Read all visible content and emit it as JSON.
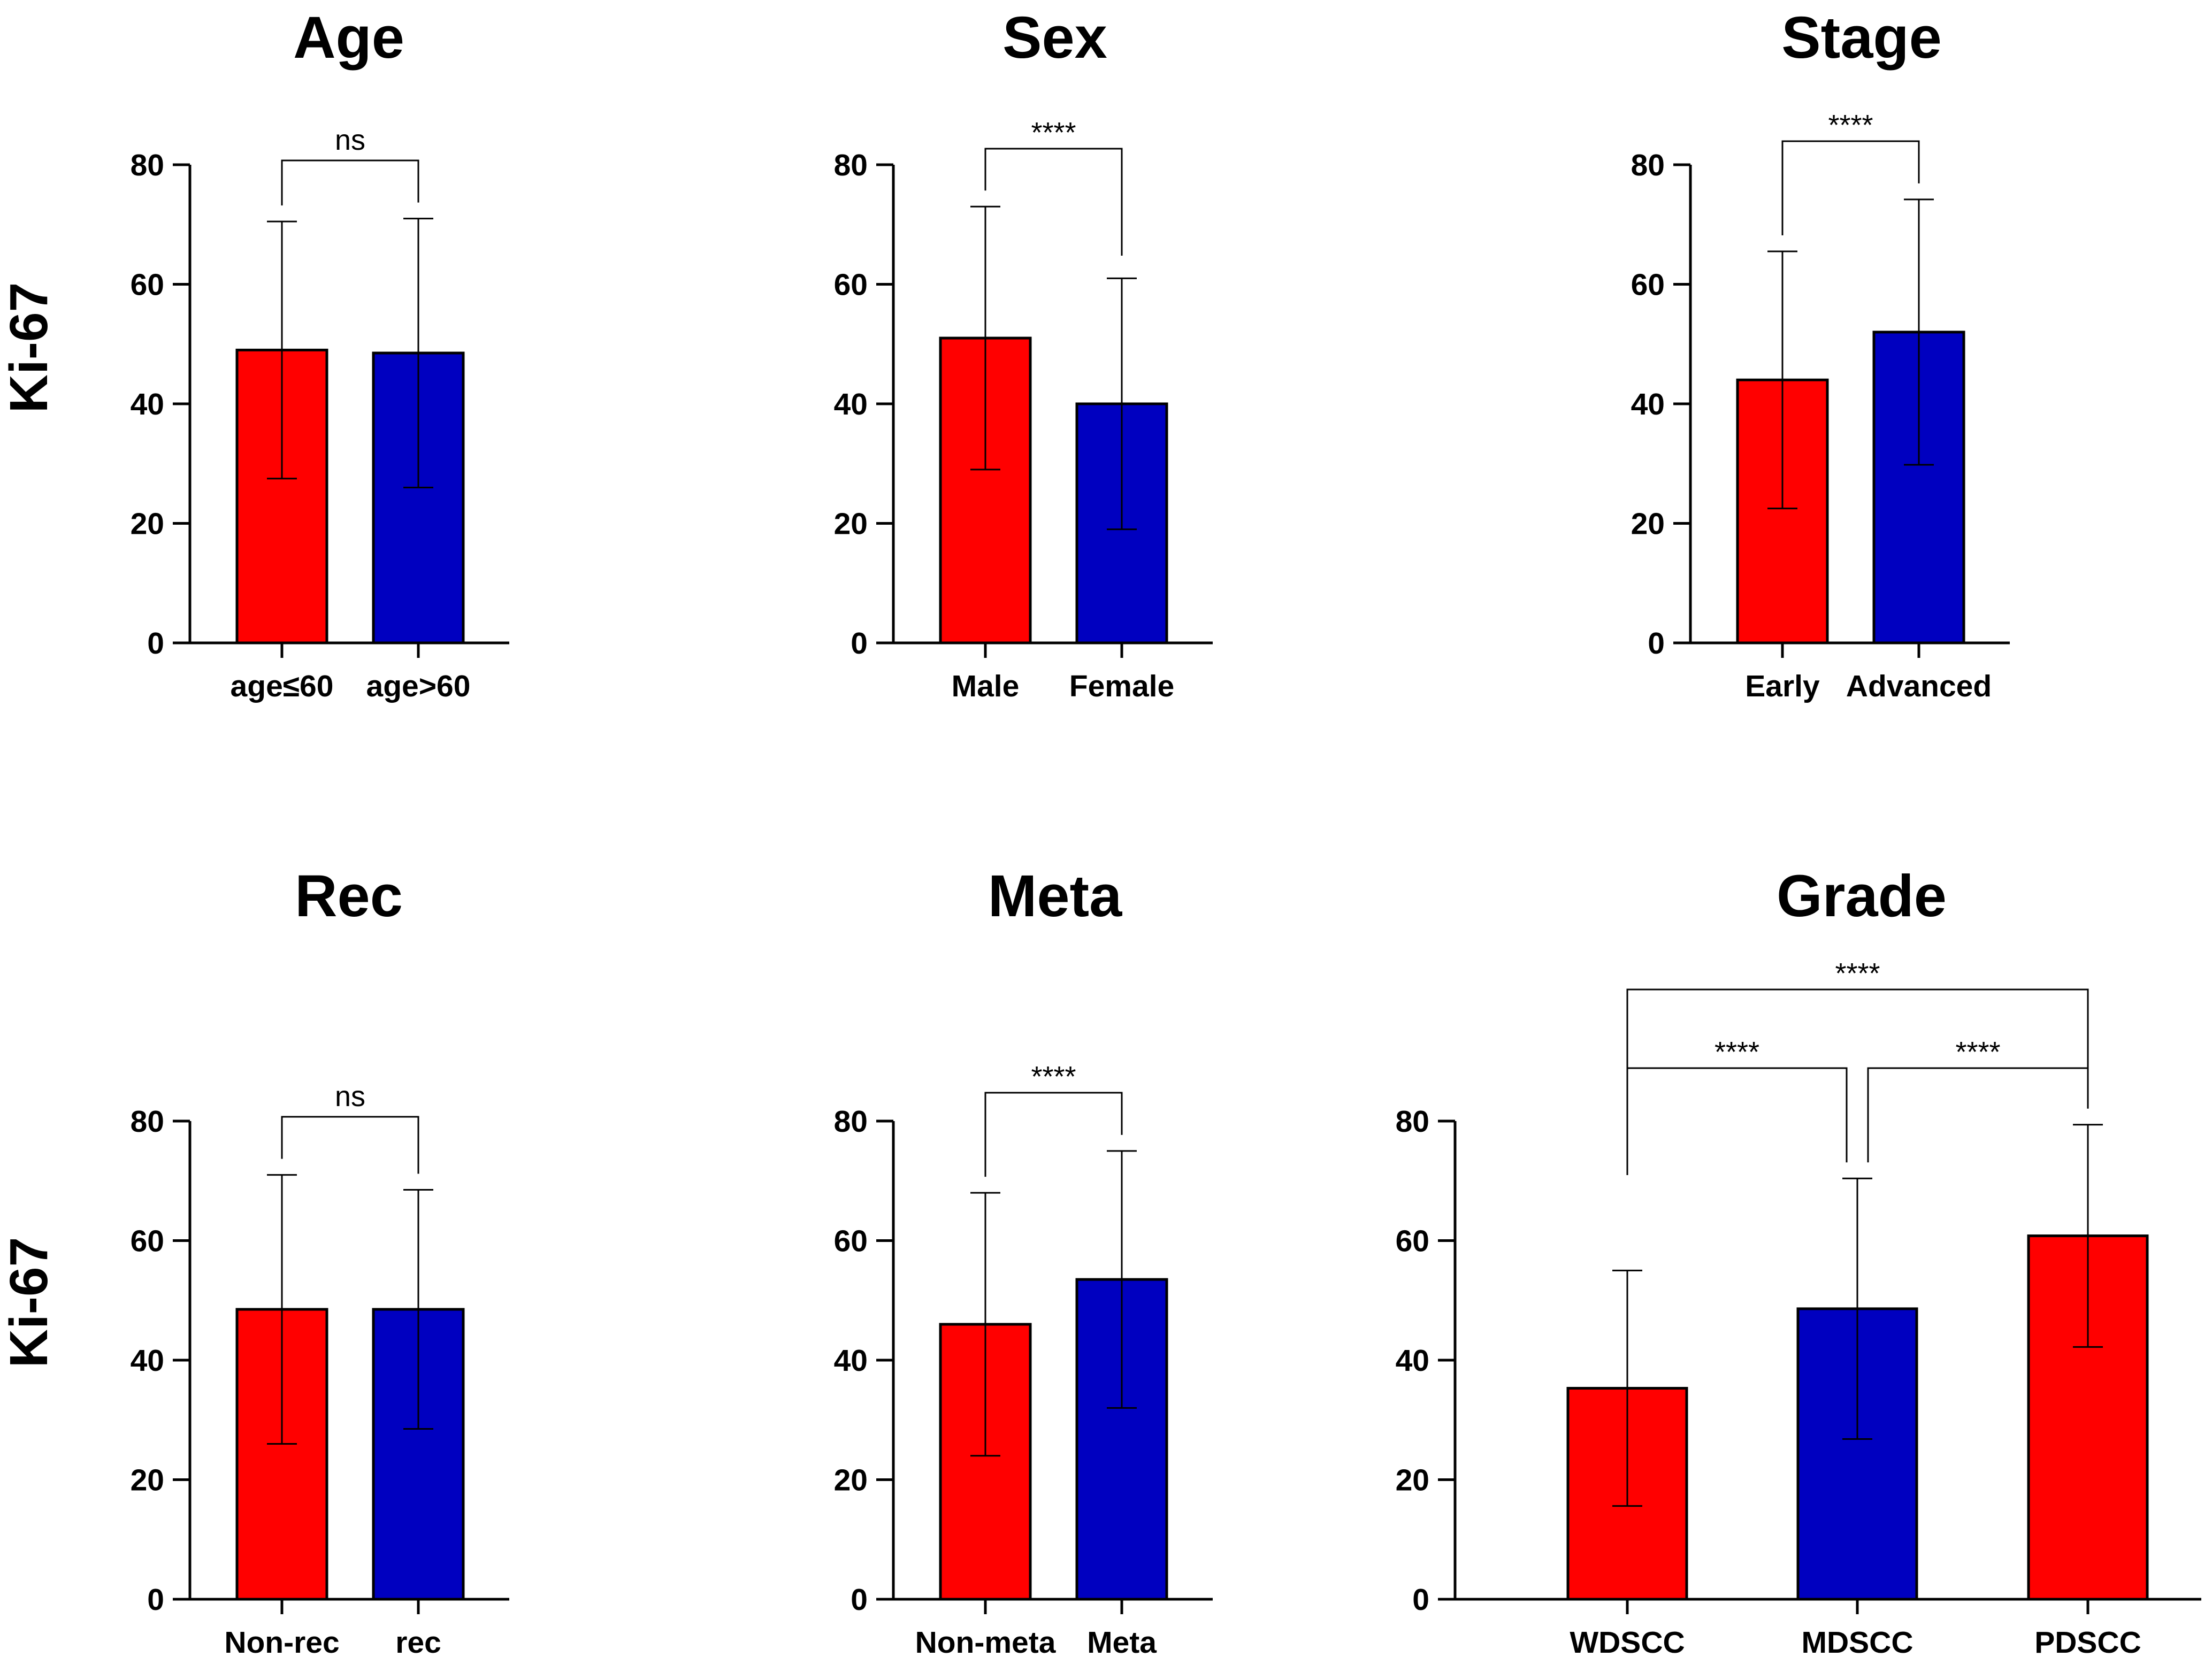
{
  "colors": {
    "group_a": "#ff0000",
    "group_b": "#0000c0"
  },
  "ylabel": "Ki-67",
  "chart_data": [
    {
      "type": "bar",
      "title": "Age",
      "ylabel": "Ki-67",
      "ylim": [
        0,
        80
      ],
      "yticks": [
        "0",
        "20",
        "40",
        "60",
        "80"
      ],
      "categories": [
        "age≤60",
        "age>60"
      ],
      "values": [
        49,
        48.5
      ],
      "errors": [
        21.5,
        22.5
      ],
      "bar_colors": [
        "#ff0000",
        "#0000c0"
      ],
      "comparisons": [
        {
          "from": 0,
          "to": 1,
          "label": "ns"
        }
      ]
    },
    {
      "type": "bar",
      "title": "Sex",
      "ylabel": "",
      "ylim": [
        0,
        80
      ],
      "yticks": [
        "0",
        "20",
        "40",
        "60",
        "80"
      ],
      "categories": [
        "Male",
        "Female"
      ],
      "values": [
        51,
        40
      ],
      "errors": [
        22,
        21
      ],
      "bar_colors": [
        "#ff0000",
        "#0000c0"
      ],
      "comparisons": [
        {
          "from": 0,
          "to": 1,
          "label": "****"
        }
      ]
    },
    {
      "type": "bar",
      "title": "Stage",
      "ylabel": "",
      "ylim": [
        0,
        80
      ],
      "yticks": [
        "0",
        "20",
        "40",
        "60",
        "80"
      ],
      "categories": [
        "Early",
        "Advanced"
      ],
      "values": [
        44,
        52
      ],
      "errors": [
        21.5,
        22.2
      ],
      "bar_colors": [
        "#ff0000",
        "#0000c0"
      ],
      "comparisons": [
        {
          "from": 0,
          "to": 1,
          "label": "****"
        }
      ]
    },
    {
      "type": "bar",
      "title": "Rec",
      "ylabel": "Ki-67",
      "ylim": [
        0,
        80
      ],
      "yticks": [
        "0",
        "20",
        "40",
        "60",
        "80"
      ],
      "categories": [
        "Non-rec",
        "rec"
      ],
      "values": [
        48.5,
        48.5
      ],
      "errors": [
        22.5,
        20
      ],
      "bar_colors": [
        "#ff0000",
        "#0000c0"
      ],
      "comparisons": [
        {
          "from": 0,
          "to": 1,
          "label": "ns"
        }
      ]
    },
    {
      "type": "bar",
      "title": "Meta",
      "ylabel": "",
      "ylim": [
        0,
        80
      ],
      "yticks": [
        "0",
        "20",
        "40",
        "60",
        "80"
      ],
      "categories": [
        "Non-meta",
        "Meta"
      ],
      "values": [
        46,
        53.5
      ],
      "errors": [
        22,
        21.5
      ],
      "bar_colors": [
        "#ff0000",
        "#0000c0"
      ],
      "comparisons": [
        {
          "from": 0,
          "to": 1,
          "label": "****"
        }
      ]
    },
    {
      "type": "bar",
      "title": "Grade",
      "ylabel": "",
      "ylim": [
        0,
        80
      ],
      "yticks": [
        "0",
        "20",
        "40",
        "60",
        "80"
      ],
      "categories": [
        "WDSCC",
        "MDSCC",
        "PDSCC"
      ],
      "values": [
        35.3,
        48.6,
        60.8
      ],
      "errors": [
        19.7,
        21.8,
        18.6
      ],
      "bar_colors": [
        "#ff0000",
        "#0000c0",
        "#ff0000"
      ],
      "comparisons": [
        {
          "from": 0,
          "to": 1,
          "label": "****"
        },
        {
          "from": 1,
          "to": 2,
          "label": "****"
        },
        {
          "from": 0,
          "to": 2,
          "label": "****"
        }
      ]
    }
  ]
}
